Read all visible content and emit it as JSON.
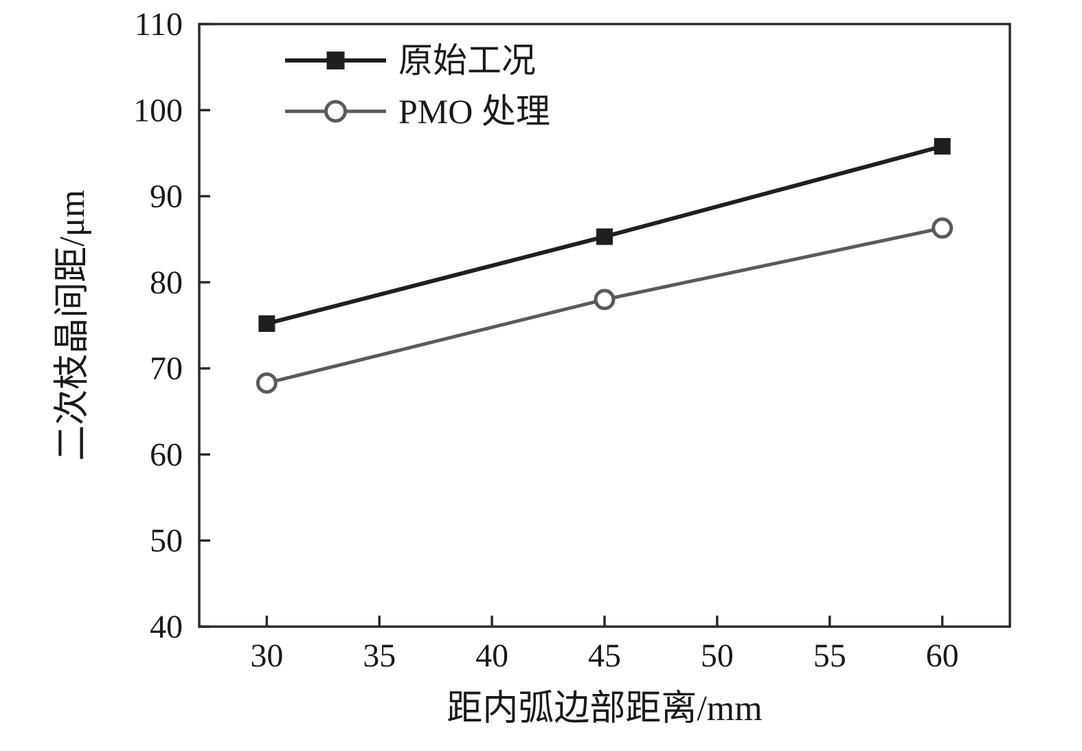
{
  "chart_data": {
    "type": "line",
    "title": "",
    "xlabel": "距内弧边部距离/mm",
    "ylabel": "二次枝晶间距/μm",
    "x": [
      30,
      45,
      60
    ],
    "series": [
      {
        "name": "原始工况",
        "values": [
          75.2,
          85.3,
          95.8
        ],
        "marker": "filled-square",
        "color": "#1f1f1f"
      },
      {
        "name": "PMO 处理",
        "values": [
          68.3,
          78.0,
          86.3
        ],
        "marker": "open-circle",
        "color": "#5a5a5a"
      }
    ],
    "xlim": [
      27,
      63
    ],
    "ylim": [
      40,
      110
    ],
    "xticks": [
      30,
      35,
      40,
      45,
      50,
      55,
      60
    ],
    "yticks": [
      40,
      50,
      60,
      70,
      80,
      90,
      100,
      110
    ],
    "grid": false,
    "legend_position": "top-left",
    "frame_color": "#2b2b2b",
    "text_color": "#1a1a1a"
  }
}
